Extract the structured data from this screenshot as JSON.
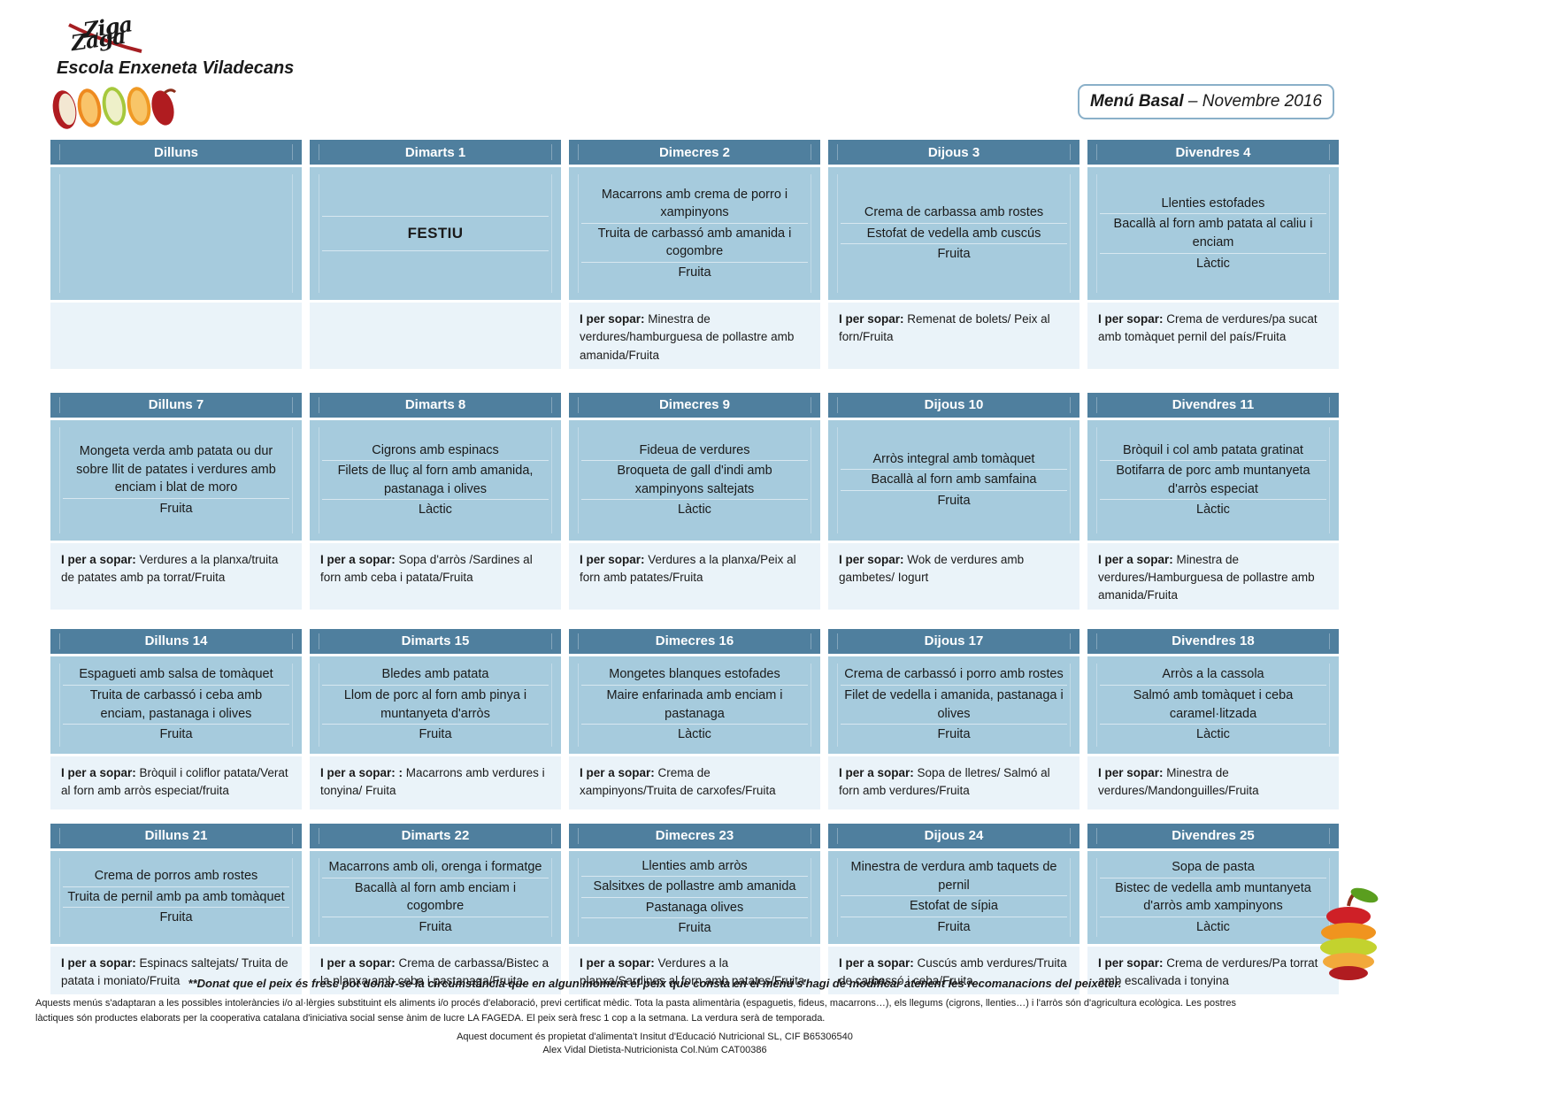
{
  "brand": {
    "logo_text_top": "Ziga",
    "logo_text_bottom": "Zaga",
    "school": "Escola Enxeneta Viladecans"
  },
  "title": {
    "bold": "Menú Basal",
    "rest": " – Novembre 2016"
  },
  "colors": {
    "header_bg": "#4f7f9e",
    "lunch_bg": "#a6cbdd",
    "dinner_bg": "#eaf3f9",
    "title_border": "#8ab0c9",
    "logo_red": "#a51e22"
  },
  "weeks": [
    {
      "days": [
        {
          "header": "Dilluns",
          "lunch": [],
          "dinner_label": "",
          "dinner_text": ""
        },
        {
          "header": "Dimarts 1",
          "festiu": true,
          "lunch": [
            "FESTIU"
          ],
          "dinner_label": "",
          "dinner_text": ""
        },
        {
          "header": "Dimecres 2",
          "lunch": [
            "Macarrons amb crema de porro i xampinyons",
            "Truita de carbassó amb amanida i cogombre",
            "Fruita"
          ],
          "dinner_label": "I per sopar:",
          "dinner_text": "Minestra de verdures/hamburguesa de pollastre amb amanida/Fruita"
        },
        {
          "header": "Dijous 3",
          "lunch": [
            "Crema de carbassa amb rostes",
            "Estofat de vedella amb cuscús",
            "Fruita"
          ],
          "dinner_label": "I per sopar:",
          "dinner_text": "Remenat de bolets/ Peix al forn/Fruita"
        },
        {
          "header": "Divendres 4",
          "lunch": [
            "Llenties estofades",
            "Bacallà al forn amb patata al caliu i enciam",
            "Làctic"
          ],
          "dinner_label": "I per sopar:",
          "dinner_text": "Crema de verdures/pa sucat amb tomàquet pernil del país/Fruita"
        }
      ]
    },
    {
      "days": [
        {
          "header": "Dilluns 7",
          "lunch": [
            "Mongeta verda amb patata ou dur sobre llit de patates i verdures amb enciam i blat de moro",
            "Fruita"
          ],
          "dinner_label": "I per a sopar:",
          "dinner_text": "Verdures a la planxa/truita de patates amb pa torrat/Fruita"
        },
        {
          "header": "Dimarts 8",
          "lunch": [
            "Cigrons amb espinacs",
            "Filets de lluç al forn amb amanida, pastanaga i olives",
            "Làctic"
          ],
          "dinner_label": "I per a sopar:",
          "dinner_text": "Sopa d'arròs /Sardines al forn amb ceba i patata/Fruita"
        },
        {
          "header": "Dimecres 9",
          "lunch": [
            "Fideua de verdures",
            "Broqueta de gall d'indi amb xampinyons saltejats",
            "Làctic"
          ],
          "dinner_label": "I per sopar:",
          "dinner_text": "Verdures a la planxa/Peix al forn amb patates/Fruita"
        },
        {
          "header": "Dijous 10",
          "lunch": [
            "Arròs integral amb tomàquet",
            "Bacallà al forn amb samfaina",
            "Fruita"
          ],
          "dinner_label": "I per sopar:",
          "dinner_text": "Wok de verdures amb gambetes/ Iogurt"
        },
        {
          "header": "Divendres 11",
          "lunch": [
            "Bròquil i col amb patata gratinat",
            "Botifarra de porc amb muntanyeta d'arròs especiat",
            "Làctic"
          ],
          "dinner_label": "I per a sopar:",
          "dinner_text": "Minestra de verdures/Hamburguesa de pollastre amb amanida/Fruita"
        }
      ]
    },
    {
      "days": [
        {
          "header": "Dilluns 14",
          "lunch": [
            "Espagueti amb salsa de tomàquet",
            "Truita de carbassó i ceba amb enciam, pastanaga i olives",
            "Fruita"
          ],
          "dinner_label": "I per a sopar:",
          "dinner_text": "Bròquil i coliflor patata/Verat al forn amb arròs especiat/fruita"
        },
        {
          "header": "Dimarts 15",
          "lunch": [
            "Bledes amb patata",
            "Llom de porc al forn amb pinya i muntanyeta d'arròs",
            "Fruita"
          ],
          "dinner_label": "I per a sopar: :",
          "dinner_text": "Macarrons amb verdures i tonyina/ Fruita"
        },
        {
          "header": "Dimecres 16",
          "lunch": [
            "Mongetes blanques estofades",
            "Maire enfarinada amb enciam i pastanaga",
            "Làctic"
          ],
          "dinner_label": "I  per a sopar:",
          "dinner_text": "Crema de xampinyons/Truita de carxofes/Fruita"
        },
        {
          "header": "Dijous 17",
          "lunch": [
            "Crema de carbassó i porro amb rostes",
            "Filet de vedella i amanida, pastanaga i olives",
            "Fruita"
          ],
          "dinner_label": "I  per a sopar:",
          "dinner_text": "Sopa de lletres/ Salmó al forn amb verdures/Fruita"
        },
        {
          "header": "Divendres 18",
          "lunch": [
            "Arròs a la cassola",
            "Salmó amb tomàquet i ceba caramel·litzada",
            "Làctic"
          ],
          "dinner_label": "I per sopar:",
          "dinner_text": "Minestra de verdures/Mandonguilles/Fruita"
        }
      ]
    },
    {
      "days": [
        {
          "header": "Dilluns 21",
          "lunch": [
            "Crema de porros amb rostes",
            "Truita de pernil amb pa amb tomàquet",
            "Fruita"
          ],
          "dinner_label": "I per a sopar:",
          "dinner_text": "Espinacs saltejats/ Truita de patata i moniato/Fruita"
        },
        {
          "header": "Dimarts 22",
          "lunch": [
            "Macarrons amb oli, orenga i formatge",
            "Bacallà al forn amb enciam i cogombre",
            "Fruita"
          ],
          "dinner_label": "I per a sopar:",
          "dinner_text": "Crema de carbassa/Bistec a la planxa amb ceba i pastanaga/Fruita"
        },
        {
          "header": "Dimecres 23",
          "lunch": [
            "Llenties amb arròs",
            "Salsitxes de pollastre amb amanida",
            "Pastanaga olives",
            "Fruita"
          ],
          "dinner_label": "I  per a sopar:",
          "dinner_text": "Verdures a la planxa/Sardines al forn amb patates/Fruita"
        },
        {
          "header": "Dijous 24",
          "lunch": [
            "Minestra de verdura amb taquets de pernil",
            "Estofat de sípia",
            "Fruita"
          ],
          "dinner_label": "I  per a sopar:",
          "dinner_text": "Cuscús amb verdures/Truita de carbassó i ceba/Fruita"
        },
        {
          "header": "Divendres 25",
          "lunch": [
            "Sopa de pasta",
            "Bistec de vedella amb muntanyeta d'arròs amb xampinyons",
            "Làctic"
          ],
          "dinner_label": "I per sopar:",
          "dinner_text": "Crema de verdures/Pa torrat amb escalivada i tonyina"
        }
      ]
    }
  ],
  "footer": {
    "note1": "**Donat que el peix és fresc pot donar-se la circumstància que en algun moment el peix que consta en el menú s'hagi de modificar atenent les recomanacions del peixeter.",
    "note2": "Aquests menús s'adaptaran a les possibles intoleràncies i/o al·lèrgies substituint els aliments i/o procés d'elaboració, previ certificat mèdic. Tota la pasta alimentària (espaguetis, fideus, macarrons…), els llegums (cigrons, llenties…) i l'arròs són d'agricultura ecològica. Les postres làctiques són productes elaborats per la cooperativa catalana d'iniciativa social sense ànim de lucre LA FAGEDA. El peix serà fresc 1 cop a la setmana. La verdura serà de temporada.",
    "note3": "Aquest document és propietat d'alimenta't Insitut d'Educació Nutricional SL, CIF B65306540",
    "note4": "Alex Vidal Dietista-Nutricionista Col.Núm CAT00386"
  }
}
